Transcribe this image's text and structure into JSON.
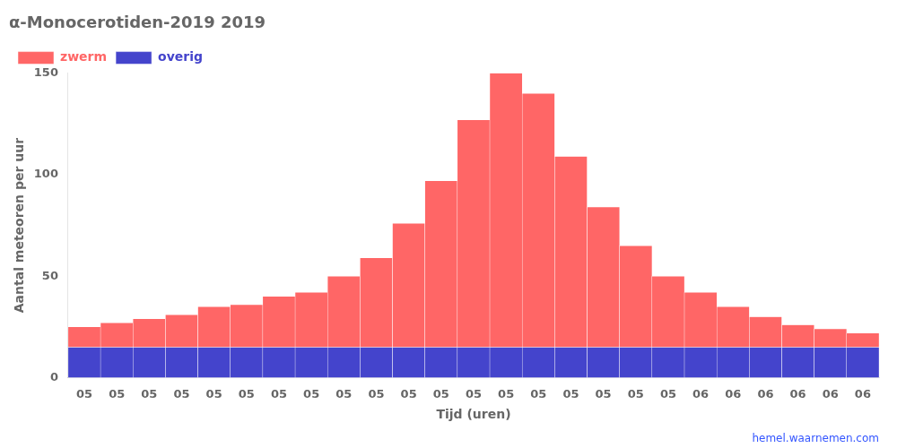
{
  "chart_data": {
    "type": "bar",
    "title": "α-Monocerotiden-2019 2019",
    "xlabel": "Tijd (uren)",
    "ylabel": "Aantal meteoren per uur",
    "categories": [
      "05",
      "05",
      "05",
      "05",
      "05",
      "05",
      "05",
      "05",
      "05",
      "05",
      "05",
      "05",
      "05",
      "05",
      "05",
      "05",
      "05",
      "05",
      "05",
      "06",
      "06",
      "06",
      "06",
      "06",
      "06"
    ],
    "series": [
      {
        "name": "overig",
        "color": "#4444cc",
        "values": [
          15,
          15,
          15,
          15,
          15,
          15,
          15,
          15,
          15,
          15,
          15,
          15,
          15,
          15,
          15,
          15,
          15,
          15,
          15,
          15,
          15,
          15,
          15,
          15,
          15
        ]
      },
      {
        "name": "zwerm",
        "color": "#ff6666",
        "values": [
          10,
          12,
          14,
          16,
          20,
          21,
          25,
          27,
          35,
          44,
          61,
          82,
          112,
          135,
          125,
          94,
          69,
          50,
          35,
          27,
          20,
          15,
          11,
          9,
          7
        ]
      }
    ],
    "stacked": true,
    "ylim": [
      0,
      150
    ],
    "yticks": [
      0,
      50,
      100,
      150
    ],
    "grid": false,
    "legend": "upper left",
    "annotations": [
      {
        "text": "hemel.waarnemen.com",
        "color": "#3355ff"
      }
    ]
  }
}
